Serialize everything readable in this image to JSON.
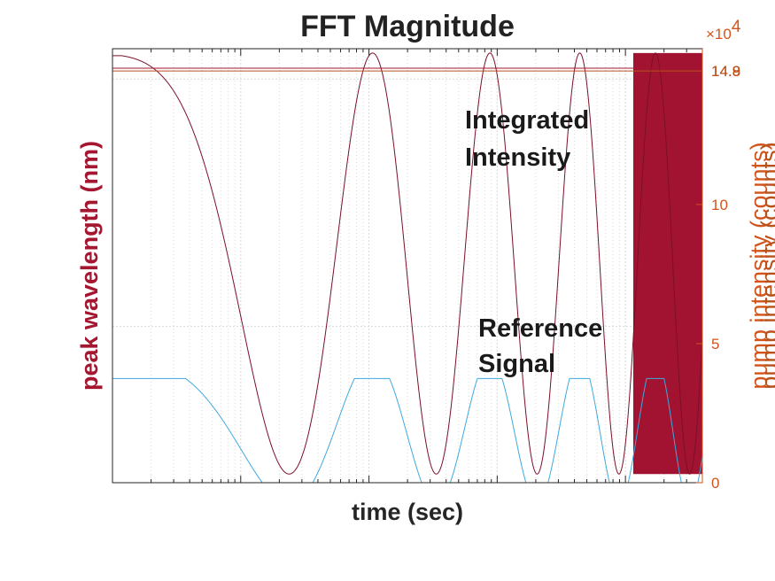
{
  "chart_data": {
    "type": "line",
    "title": "FFT Magnitude",
    "xlabel": "time (sec)",
    "ylabel_left": "peak wavelength (nm)",
    "ylabel_right": "pump intensity (counts)",
    "ylabel_right_overlap": "pump intensity (counts)",
    "right_axis_exponent": "×10",
    "right_axis_exponent_power": "4",
    "right_yticks": [
      0,
      5,
      10
    ],
    "right_overlap_ticks": [
      "14.9",
      "14.8"
    ],
    "right_ylim": [
      0,
      15.6
    ],
    "x_scale": "log",
    "grid": "on",
    "annotations": [
      "Integrated Intensity",
      "Reference Signal"
    ],
    "series": [
      {
        "color": "#a51630",
        "x": [
          1,
          40000
        ],
        "y_right": [
          14.9,
          14.9
        ]
      },
      {
        "color": "#b8501a",
        "x": [
          1,
          40000
        ],
        "y_right": [
          14.8,
          14.8
        ]
      },
      {
        "color": "#7b0f28",
        "envelope": [
          0.02,
          0.99
        ]
      },
      {
        "color": "#3ea9df",
        "envelope": [
          0.0,
          0.24
        ]
      }
    ]
  },
  "colors": {
    "left_axis": "#a51630",
    "right_axis": "#d3541a",
    "chirp": "#7b0f28",
    "reference": "#3ea9df",
    "hline_a": "#a51630",
    "hline_b": "#b8501a"
  }
}
